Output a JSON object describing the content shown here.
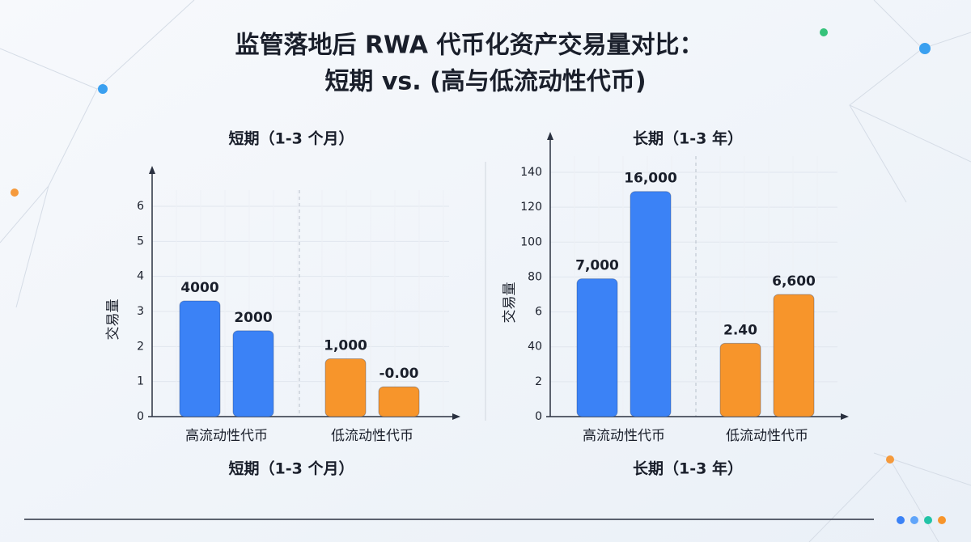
{
  "title": [
    "监管落地后 RWA 代币化资产交易量对比：",
    "短期 vs. (高与低流动性代币)"
  ],
  "chart_data": [
    {
      "type": "bar",
      "title": "短期（1-3 个月）",
      "xlabel": "短期（1-3 个月）",
      "ylabel": "交易量",
      "categories": [
        "高流动性代币",
        "低流动性代币"
      ],
      "colors": [
        "#3b82f6",
        "#f7952b"
      ],
      "series": [
        {
          "values": [
            3.3,
            1.65
          ]
        },
        {
          "values": [
            2.45,
            0.85
          ]
        }
      ],
      "annotations": [
        [
          "4000",
          "1,000"
        ],
        [
          "2000",
          "-0.00"
        ]
      ],
      "ylim": [
        0,
        6
      ],
      "yticks": [
        0,
        1,
        2,
        3,
        4,
        5,
        6
      ],
      "grid": true
    },
    {
      "type": "bar",
      "title": "长期（1-3 年）",
      "xlabel": "长期（1-3 年）",
      "ylabel": "交易量",
      "categories": [
        "高流动性代币",
        "低流动性代币"
      ],
      "colors": [
        "#3b82f6",
        "#f7952b"
      ],
      "series": [
        {
          "values": [
            79,
            42
          ]
        },
        {
          "values": [
            129,
            70
          ]
        }
      ],
      "annotations": [
        [
          "7,000",
          "2.40"
        ],
        [
          "16,000",
          "6,600"
        ]
      ],
      "ylim": [
        0,
        140
      ],
      "yticks": [
        0,
        {
          "value": 20,
          "label": "2"
        },
        40,
        {
          "value": 60,
          "label": "6"
        },
        80,
        100,
        120,
        140
      ],
      "grid": true
    }
  ]
}
